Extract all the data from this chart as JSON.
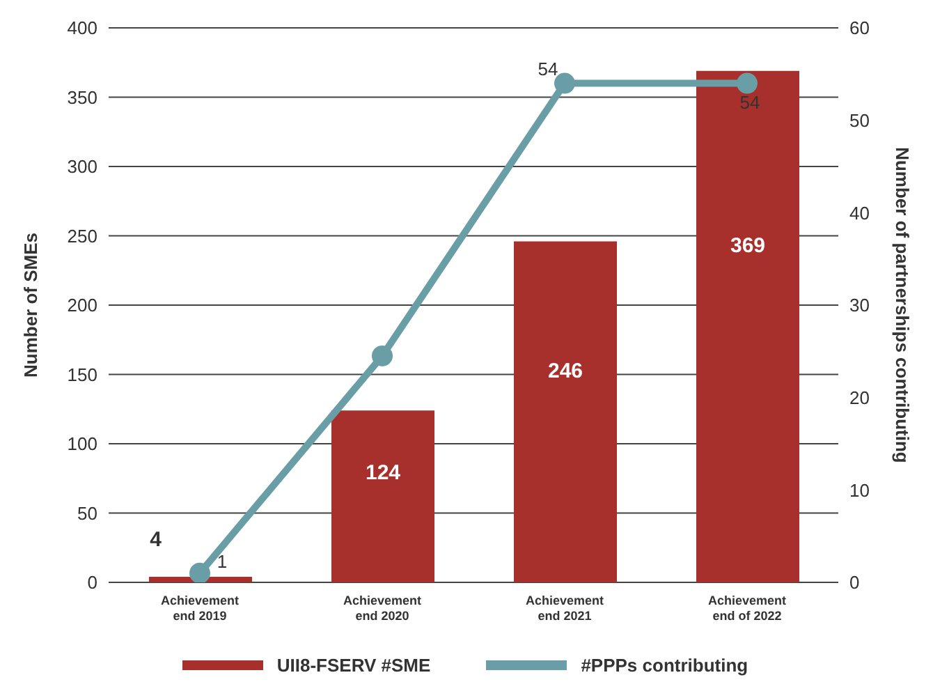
{
  "chart_data": {
    "type": "bar",
    "categories": [
      "Achievement end 2019",
      "Achievement end 2020",
      "Achievement end 2021",
      "Achievement end of 2022"
    ],
    "ylabel": "Number of SMEs",
    "y2label": "Number of partnerships contributing",
    "ylim": [
      0,
      400
    ],
    "yticks": [
      0,
      50,
      100,
      150,
      200,
      250,
      300,
      350,
      400
    ],
    "y2lim": [
      0,
      60
    ],
    "y2ticks": [
      0,
      10,
      20,
      30,
      40,
      50,
      60
    ],
    "grid": "y",
    "legend": "bottom",
    "data_labels": true,
    "series": [
      {
        "name": "UII8-FSERV #SME",
        "color": "#a8302c",
        "values": [
          4,
          124,
          246,
          369
        ]
      },
      {
        "name": "#PPPs contributing",
        "type": "line",
        "axis": "y2",
        "color": "#6a9ea6",
        "marker": "circle",
        "values": [
          1,
          24.5,
          54,
          54
        ],
        "value_labels": [
          "1",
          null,
          "54",
          "54"
        ]
      }
    ]
  }
}
